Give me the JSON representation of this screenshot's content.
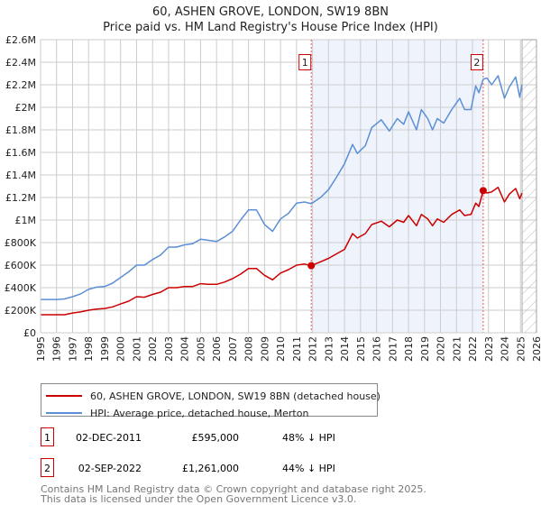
{
  "chart_data": {
    "type": "line",
    "title": "60, ASHEN GROVE, LONDON, SW19 8BN",
    "subtitle": "Price paid vs. HM Land Registry's House Price Index (HPI)",
    "xlim": [
      1995,
      2026
    ],
    "ylim": [
      0,
      2600000
    ],
    "x_ticks": [
      "1995",
      "1996",
      "1997",
      "1998",
      "1999",
      "2000",
      "2001",
      "2002",
      "2003",
      "2004",
      "2005",
      "2006",
      "2007",
      "2008",
      "2009",
      "2010",
      "2011",
      "2012",
      "2013",
      "2014",
      "2015",
      "2016",
      "2017",
      "2018",
      "2019",
      "2020",
      "2021",
      "2022",
      "2023",
      "2024",
      "2025",
      "2026"
    ],
    "y_ticks": [
      {
        "v": 0,
        "label": "£0"
      },
      {
        "v": 200000,
        "label": "£200K"
      },
      {
        "v": 400000,
        "label": "£400K"
      },
      {
        "v": 600000,
        "label": "£600K"
      },
      {
        "v": 800000,
        "label": "£800K"
      },
      {
        "v": 1000000,
        "label": "£1M"
      },
      {
        "v": 1200000,
        "label": "£1.2M"
      },
      {
        "v": 1400000,
        "label": "£1.4M"
      },
      {
        "v": 1600000,
        "label": "£1.6M"
      },
      {
        "v": 1800000,
        "label": "£1.8M"
      },
      {
        "v": 2000000,
        "label": "£2M"
      },
      {
        "v": 2200000,
        "label": "£2.2M"
      },
      {
        "v": 2400000,
        "label": "£2.4M"
      },
      {
        "v": 2600000,
        "label": "£2.6M"
      }
    ],
    "grid": true,
    "shaded_range": [
      2011.92,
      2022.67
    ],
    "hatched_from": 2025.1,
    "colors": {
      "property": "#cc0000",
      "hpi": "#5b8fd6",
      "shade": "#eef3fc",
      "marker_border": "#cc0000"
    },
    "x": [
      1995,
      1996,
      1996.5,
      1997,
      1997.5,
      1998,
      1998.5,
      1999,
      1999.5,
      2000,
      2000.5,
      2001,
      2001.5,
      2002,
      2002.5,
      2003,
      2003.5,
      2004,
      2004.5,
      2005,
      2005.5,
      2006,
      2006.5,
      2007,
      2007.5,
      2008,
      2008.5,
      2009,
      2009.5,
      2010,
      2010.5,
      2011,
      2011.5,
      2011.92,
      2012.5,
      2013,
      2013.5,
      2014,
      2014.5,
      2014.8,
      2015.3,
      2015.7,
      2016.3,
      2016.8,
      2017.3,
      2017.7,
      2018,
      2018.5,
      2018.8,
      2019.2,
      2019.5,
      2019.8,
      2020.2,
      2020.7,
      2021.2,
      2021.5,
      2021.9,
      2022.2,
      2022.4,
      2022.67,
      2022.9,
      2023.2,
      2023.6,
      2024,
      2024.3,
      2024.7,
      2024.95,
      2025.1
    ],
    "series": [
      {
        "name": "60, ASHEN GROVE, LONDON, SW19 8BN (detached house)",
        "color": "#cc0000",
        "values": [
          160000,
          160000,
          160000,
          175000,
          185000,
          200000,
          210000,
          215000,
          230000,
          255000,
          280000,
          320000,
          315000,
          340000,
          360000,
          400000,
          400000,
          410000,
          410000,
          435000,
          430000,
          430000,
          450000,
          480000,
          520000,
          570000,
          570000,
          510000,
          470000,
          530000,
          560000,
          600000,
          610000,
          595000,
          630000,
          660000,
          700000,
          740000,
          880000,
          840000,
          880000,
          960000,
          990000,
          940000,
          1000000,
          980000,
          1040000,
          950000,
          1050000,
          1010000,
          950000,
          1010000,
          980000,
          1050000,
          1090000,
          1040000,
          1050000,
          1150000,
          1120000,
          1261000,
          1240000,
          1250000,
          1290000,
          1160000,
          1230000,
          1280000,
          1190000,
          1240000
        ]
      },
      {
        "name": "HPI: Average price, detached house, Merton",
        "color": "#5b8fd6",
        "values": [
          295000,
          295000,
          300000,
          320000,
          345000,
          385000,
          405000,
          410000,
          440000,
          490000,
          540000,
          600000,
          600000,
          650000,
          690000,
          760000,
          760000,
          780000,
          790000,
          830000,
          820000,
          810000,
          850000,
          900000,
          1000000,
          1090000,
          1090000,
          960000,
          900000,
          1010000,
          1060000,
          1150000,
          1160000,
          1145000,
          1200000,
          1270000,
          1380000,
          1500000,
          1670000,
          1590000,
          1660000,
          1820000,
          1890000,
          1790000,
          1900000,
          1850000,
          1960000,
          1800000,
          1980000,
          1900000,
          1800000,
          1900000,
          1860000,
          1980000,
          2080000,
          1980000,
          1980000,
          2190000,
          2130000,
          2250000,
          2260000,
          2200000,
          2280000,
          2080000,
          2180000,
          2270000,
          2090000,
          2200000
        ]
      }
    ],
    "sales": [
      {
        "id": "1",
        "x": 2011.92,
        "price": 595000,
        "date": "02-DEC-2011",
        "price_label": "£595,000",
        "hpi_diff": "48% ↓ HPI"
      },
      {
        "id": "2",
        "x": 2022.67,
        "price": 1261000,
        "date": "02-SEP-2022",
        "price_label": "£1,261,000",
        "hpi_diff": "44% ↓ HPI"
      }
    ],
    "legend_position": "below"
  },
  "footer": {
    "line1": "Contains HM Land Registry data © Crown copyright and database right 2025.",
    "line2": "This data is licensed under the Open Government Licence v3.0."
  }
}
